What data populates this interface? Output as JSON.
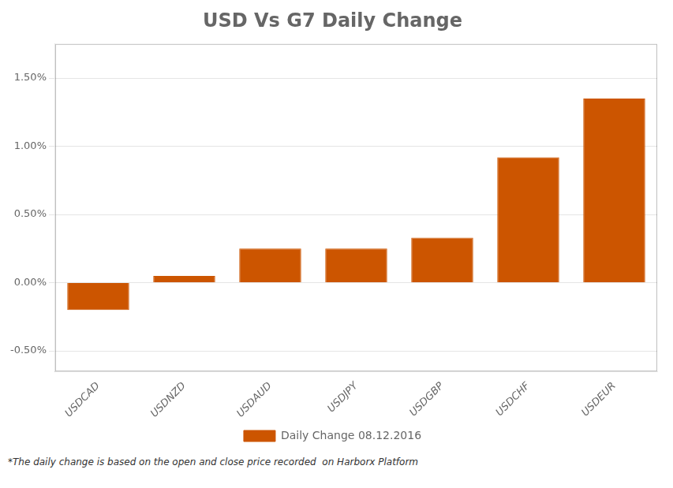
{
  "chart_data": {
    "type": "bar",
    "title": "USD Vs G7 Daily Change",
    "categories": [
      "USDCAD",
      "USDNZD",
      "USDAUD",
      "USDJPY",
      "USDGBP",
      "USDCHF",
      "USDEUR"
    ],
    "series": [
      {
        "name": "Daily Change 08.12.2016",
        "color": "#CC5500",
        "values": [
          -0.2,
          0.05,
          0.25,
          0.25,
          0.33,
          0.92,
          1.35
        ]
      }
    ],
    "ylim": [
      -0.65,
      1.75
    ],
    "yticks": [
      {
        "value": -0.5,
        "label": "-0.50%"
      },
      {
        "value": 0.0,
        "label": "0.00%"
      },
      {
        "value": 0.5,
        "label": "0.50%"
      },
      {
        "value": 1.0,
        "label": "1.00%"
      },
      {
        "value": 1.5,
        "label": "1.50%"
      }
    ],
    "grid": true,
    "legend": "bottom",
    "annotations": [
      "*The daily change is based on the open and close price recorded  on Harborx Platform"
    ]
  }
}
